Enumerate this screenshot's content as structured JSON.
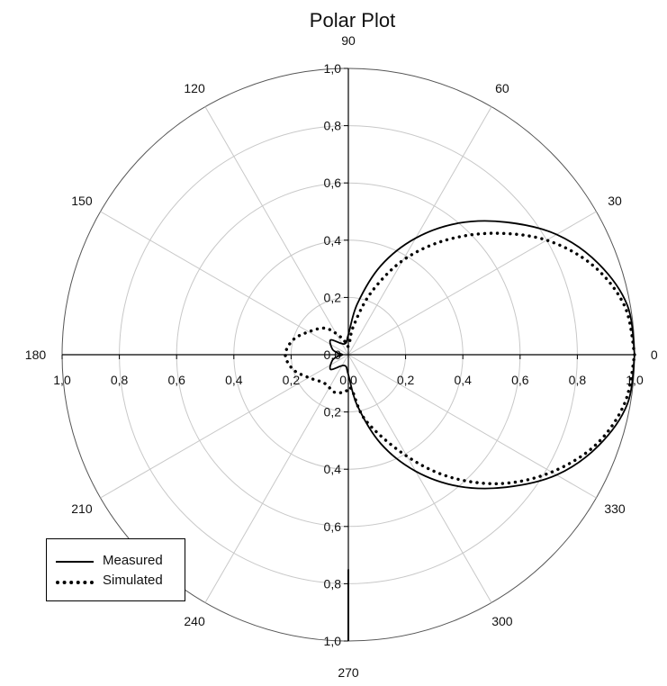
{
  "chart_data": {
    "type": "line",
    "subtype": "polar",
    "title": "Polar Plot",
    "r_range": [
      0,
      1.0
    ],
    "r_ticks": [
      "0,0",
      "0,2",
      "0,4",
      "0,6",
      "0,8",
      "1,0"
    ],
    "angle_ticks": [
      "0",
      "30",
      "60",
      "90",
      "120",
      "150",
      "180",
      "210",
      "240",
      "270",
      "300",
      "330"
    ],
    "angle_values": [
      0,
      30,
      60,
      90,
      120,
      150,
      180,
      210,
      240,
      270,
      300,
      330
    ],
    "grid": true,
    "legend_position": "bottom-left",
    "series": [
      {
        "name": "Measured",
        "style": "solid",
        "color": "#000000",
        "points": [
          [
            0,
            1.0
          ],
          [
            10,
            0.99
          ],
          [
            20,
            0.93
          ],
          [
            30,
            0.84
          ],
          [
            40,
            0.72
          ],
          [
            50,
            0.6
          ],
          [
            60,
            0.47
          ],
          [
            70,
            0.33
          ],
          [
            80,
            0.18
          ],
          [
            90,
            0.07
          ],
          [
            110,
            0.04
          ],
          [
            140,
            0.08
          ],
          [
            160,
            0.06
          ],
          [
            170,
            0.04
          ],
          [
            180,
            0.02
          ],
          [
            190,
            0.04
          ],
          [
            200,
            0.06
          ],
          [
            220,
            0.08
          ],
          [
            250,
            0.04
          ],
          [
            270,
            0.07
          ],
          [
            280,
            0.18
          ],
          [
            290,
            0.33
          ],
          [
            300,
            0.47
          ],
          [
            310,
            0.6
          ],
          [
            320,
            0.72
          ],
          [
            330,
            0.84
          ],
          [
            340,
            0.93
          ],
          [
            350,
            0.99
          ],
          [
            360,
            1.0
          ]
        ],
        "spike": {
          "angle": 270,
          "r": 1.0
        }
      },
      {
        "name": "Simulated",
        "style": "dotted",
        "color": "#000000",
        "points": [
          [
            0,
            1.0
          ],
          [
            10,
            0.98
          ],
          [
            20,
            0.91
          ],
          [
            30,
            0.8
          ],
          [
            40,
            0.66
          ],
          [
            50,
            0.52
          ],
          [
            60,
            0.38
          ],
          [
            70,
            0.23
          ],
          [
            80,
            0.1
          ],
          [
            90,
            0.03
          ],
          [
            110,
            0.06
          ],
          [
            130,
            0.12
          ],
          [
            150,
            0.16
          ],
          [
            165,
            0.2
          ],
          [
            180,
            0.22
          ],
          [
            195,
            0.2
          ],
          [
            210,
            0.16
          ],
          [
            230,
            0.13
          ],
          [
            250,
            0.14
          ],
          [
            265,
            0.13
          ],
          [
            275,
            0.12
          ],
          [
            285,
            0.24
          ],
          [
            300,
            0.41
          ],
          [
            310,
            0.56
          ],
          [
            320,
            0.7
          ],
          [
            330,
            0.82
          ],
          [
            340,
            0.92
          ],
          [
            350,
            0.98
          ],
          [
            360,
            1.0
          ]
        ]
      }
    ]
  },
  "legend": {
    "measured_label": "Measured",
    "simulated_label": "Simulated"
  }
}
